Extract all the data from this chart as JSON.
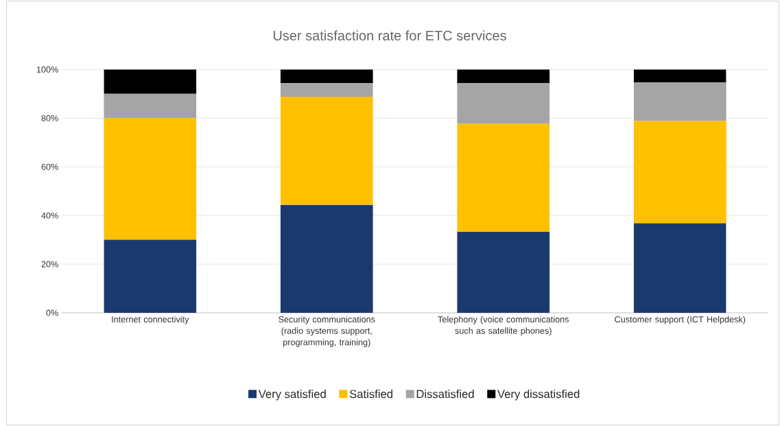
{
  "chart_data": {
    "type": "bar",
    "title": "User satisfaction rate for ETC services",
    "categories": [
      "Internet connectivity",
      "Security communications (radio systems support, programming, training)",
      "Telephony (voice communications such as satellite phones)",
      "Customer support (ICT Helpdesk)"
    ],
    "stacked": true,
    "series": [
      {
        "name": "Very satisfied",
        "color": "#1a3a6e",
        "values": [
          30,
          44.4,
          33.3,
          36.8
        ]
      },
      {
        "name": "Satisfied",
        "color": "#ffc000",
        "values": [
          50,
          44.4,
          44.4,
          42.1
        ]
      },
      {
        "name": "Dissatisfied",
        "color": "#a5a5a5",
        "values": [
          10,
          5.6,
          16.7,
          15.8
        ]
      },
      {
        "name": "Very dissatisfied",
        "color": "#000000",
        "values": [
          10,
          5.6,
          5.6,
          5.3
        ]
      }
    ],
    "ylim": [
      0,
      100
    ],
    "yticks": [
      {
        "value": 0,
        "label": "0%"
      },
      {
        "value": 20,
        "label": "20%"
      },
      {
        "value": 40,
        "label": "40%"
      },
      {
        "value": 60,
        "label": "60%"
      },
      {
        "value": 80,
        "label": "80%"
      },
      {
        "value": 100,
        "label": "100%"
      }
    ],
    "grid": "y",
    "legend": "bottom"
  }
}
